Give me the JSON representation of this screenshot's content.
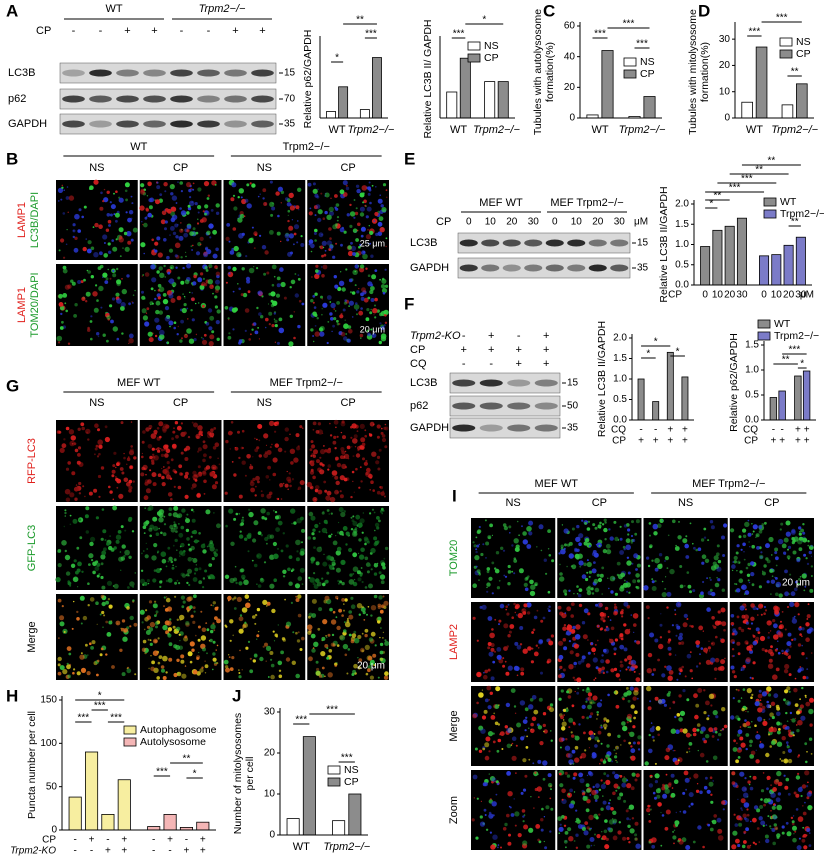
{
  "figure": {
    "panel_labels": [
      "A",
      "B",
      "C",
      "D",
      "E",
      "F",
      "G",
      "H",
      "I",
      "J"
    ],
    "blot_A": {
      "groups": [
        "WT",
        "Trpm2−/−"
      ],
      "condition": "CP",
      "signs": [
        "-",
        "-",
        "+",
        "+",
        "-",
        "-",
        "+",
        "+"
      ],
      "rows": [
        "LC3B",
        "p62",
        "GAPDH"
      ],
      "markers": [
        "15",
        "70",
        "35"
      ]
    },
    "images_B": {
      "groups": [
        "WT",
        "Trpm2−/−"
      ],
      "columns": [
        "NS",
        "CP",
        "NS",
        "CP"
      ],
      "rows": [
        [
          "LAMP1",
          "LC3B/DAPI"
        ],
        [
          "LAMP1",
          "TOM20/DAPI"
        ]
      ],
      "scale_bars": [
        "25 μm",
        "20 μm"
      ]
    },
    "blot_E": {
      "groups": [
        "MEF WT",
        "MEF Trpm2−/−"
      ],
      "condition": "CP",
      "doses": [
        "0",
        "10",
        "20",
        "30",
        "0",
        "10",
        "20",
        "30"
      ],
      "unit": "μM",
      "rows": [
        "LC3B",
        "GAPDH"
      ],
      "markers": [
        "15",
        "35"
      ]
    },
    "blot_F": {
      "conditions": [
        {
          "name": "Trpm2-KO",
          "signs": [
            "-",
            "+",
            "-",
            "+"
          ]
        },
        {
          "name": "CP",
          "signs": [
            "+",
            "+",
            "+",
            "+"
          ]
        },
        {
          "name": "CQ",
          "signs": [
            "-",
            "-",
            "+",
            "+"
          ]
        }
      ],
      "rows": [
        "LC3B",
        "p62",
        "GAPDH"
      ],
      "markers": [
        "15",
        "50",
        "35"
      ]
    },
    "images_G": {
      "groups": [
        "MEF WT",
        "MEF Trpm2−/−"
      ],
      "columns": [
        "NS",
        "CP",
        "NS",
        "CP"
      ],
      "rows": [
        "RFP-LC3",
        "GFP-LC3",
        "Merge"
      ],
      "scale_bar": "20 μm"
    },
    "images_I": {
      "groups": [
        "MEF WT",
        "MEF Trpm2−/−"
      ],
      "columns": [
        "NS",
        "CP",
        "NS",
        "CP"
      ],
      "rows": [
        "TOM20",
        "LAMP2",
        "Merge",
        "Zoom"
      ],
      "scale_bar": "20 μm"
    }
  },
  "chart_data": [
    {
      "type": "bar",
      "ylabel": [
        "Relative p62/GAPDH"
      ],
      "categories": [
        "WT",
        "Trpm2−/−"
      ],
      "series": [
        {
          "color": "#ffffff",
          "values": [
            1.0,
            1.3
          ]
        },
        {
          "color": "#8c8c8c",
          "values": [
            4.8,
            9.3
          ]
        }
      ],
      "ylim": [
        0,
        12
      ],
      "yticks": [],
      "annotations": [
        "*",
        "***",
        "**"
      ]
    },
    {
      "type": "bar",
      "ylabel": [
        "Relative LC3B II/ GAPDH"
      ],
      "categories": [
        "WT",
        "Trpm2−/−"
      ],
      "series": [
        {
          "name": "NS",
          "color": "#ffffff",
          "values": [
            1.0,
            1.4
          ]
        },
        {
          "name": "CP",
          "color": "#8c8c8c",
          "values": [
            2.3,
            1.4
          ]
        }
      ],
      "ylim": [
        0,
        3
      ],
      "yticks": [],
      "annotations": [
        "***",
        "*"
      ]
    },
    {
      "type": "bar",
      "ylabel": [
        "Tubules with autolysosome",
        "formation(%)"
      ],
      "categories": [
        "WT",
        "Trpm2−/−"
      ],
      "series": [
        {
          "name": "NS",
          "color": "#ffffff",
          "values": [
            2,
            1
          ]
        },
        {
          "name": "CP",
          "color": "#8c8c8c",
          "values": [
            44,
            14
          ]
        }
      ],
      "ylim": [
        0,
        60
      ],
      "yticks": [
        0,
        20,
        40,
        60
      ],
      "annotations": [
        "***",
        "***",
        "***"
      ]
    },
    {
      "type": "bar",
      "ylabel": [
        "Tubules with mitolysosome",
        "formation(%)"
      ],
      "categories": [
        "WT",
        "Trpm2−/−"
      ],
      "series": [
        {
          "name": "NS",
          "color": "#ffffff",
          "values": [
            6,
            5
          ]
        },
        {
          "name": "CP",
          "color": "#8c8c8c",
          "values": [
            27,
            13
          ]
        }
      ],
      "ylim": [
        0,
        35
      ],
      "yticks": [
        0,
        10,
        20,
        30
      ],
      "annotations": [
        "***",
        "**",
        "***"
      ]
    },
    {
      "type": "bar",
      "ylabel": [
        "Relative LC3B II/GAPDH"
      ],
      "categories": [
        "0",
        "10",
        "20",
        "30"
      ],
      "xlabel": "CP",
      "unit": "μM",
      "series": [
        {
          "name": "WT",
          "color": "#8c8c8c",
          "values": [
            0.95,
            1.35,
            1.45,
            1.65
          ]
        },
        {
          "name": "Trpm2−/−",
          "color": "#7b7bc8",
          "values": [
            0.72,
            0.75,
            0.98,
            1.18
          ]
        }
      ],
      "ylim": [
        0,
        2
      ],
      "yticks": [
        {
          "value": 0,
          "label": "0.0"
        },
        {
          "value": 0.5,
          "label": "0.5"
        },
        {
          "value": 1,
          "label": "1.0"
        },
        {
          "value": 1.5,
          "label": "1.5"
        },
        {
          "value": 2,
          "label": "2.0"
        }
      ],
      "annotations": [
        "**",
        "**",
        "***",
        "***",
        "**",
        "*",
        "**"
      ]
    },
    {
      "type": "bar",
      "ylabel": [
        "Relative LC3B II/GAPDH"
      ],
      "series": [
        {
          "color": "#8c8c8c",
          "values": [
            1.0,
            0.45,
            1.65,
            1.05
          ]
        }
      ],
      "conditions": [
        {
          "name": "CQ",
          "signs": [
            "-",
            "-",
            "+",
            "+"
          ]
        },
        {
          "name": "CP",
          "signs": [
            "+",
            "+",
            "+",
            "+"
          ]
        }
      ],
      "ylim": [
        0,
        2
      ],
      "yticks": [
        {
          "value": 0,
          "label": "0.0"
        },
        {
          "value": 0.5,
          "label": "0.5"
        },
        {
          "value": 1,
          "label": "1.0"
        },
        {
          "value": 1.5,
          "label": "1.5"
        },
        {
          "value": 2,
          "label": "2.0"
        }
      ],
      "annotations": [
        "*",
        "*",
        "*"
      ]
    },
    {
      "type": "bar",
      "ylabel": [
        "Relative p62/GAPDH"
      ],
      "series": [
        {
          "name": "WT",
          "color": "#8c8c8c",
          "values": [
            0.45,
            0.88
          ]
        },
        {
          "name": "Trpm2−/−",
          "color": "#7b7bc8",
          "values": [
            0.58,
            0.98
          ]
        }
      ],
      "conditions": [
        {
          "name": "CQ",
          "signs": [
            "-",
            "-",
            "+",
            "+"
          ]
        },
        {
          "name": "CP",
          "signs": [
            "+",
            "+",
            "+",
            "+"
          ]
        }
      ],
      "ylim": [
        0,
        1.5
      ],
      "yticks": [
        {
          "value": 0,
          "label": "0.0"
        },
        {
          "value": 0.5,
          "label": "0.5"
        },
        {
          "value": 1,
          "label": "1.0"
        },
        {
          "value": 1.5,
          "label": "1.5"
        }
      ],
      "annotations": [
        "**",
        "***",
        "*"
      ]
    },
    {
      "type": "bar",
      "ylabel": [
        "Puncta number per cell"
      ],
      "series": [
        {
          "name": "Autophagosome",
          "color": "#f7eea0",
          "values": [
            38,
            90,
            18,
            58
          ]
        },
        {
          "name": "Autolysosome",
          "color": "#f4b6b6",
          "values": [
            4,
            18,
            3,
            9
          ]
        }
      ],
      "conditions": [
        {
          "name": "CP",
          "signs": [
            "-",
            "+",
            "-",
            "+",
            "-",
            "+",
            "-",
            "+"
          ]
        },
        {
          "name": "Trpm2-KO",
          "signs": [
            "-",
            "-",
            "+",
            "+",
            "-",
            "-",
            "+",
            "+"
          ]
        }
      ],
      "ylim": [
        0,
        150
      ],
      "yticks": [
        0,
        50,
        100,
        150
      ],
      "annotations": [
        "*",
        "***",
        "***",
        "***",
        "***",
        "**",
        "*"
      ]
    },
    {
      "type": "bar",
      "ylabel": [
        "Number of mitolysosomes",
        "per cell"
      ],
      "categories": [
        "WT",
        "Trpm2−/−"
      ],
      "series": [
        {
          "name": "NS",
          "color": "#ffffff",
          "values": [
            4,
            3.5
          ]
        },
        {
          "name": "CP",
          "color": "#8c8c8c",
          "values": [
            24,
            10
          ]
        }
      ],
      "ylim": [
        0,
        30
      ],
      "yticks": [
        0,
        10,
        20,
        30
      ],
      "annotations": [
        "***",
        "***",
        "***"
      ]
    }
  ]
}
